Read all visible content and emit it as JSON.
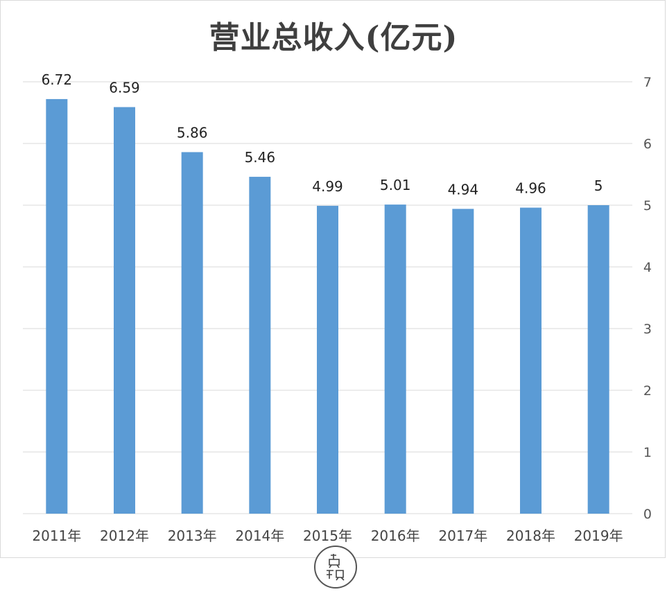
{
  "chart_data": {
    "type": "bar",
    "title": "营业总收入(亿元)",
    "categories": [
      "2011年",
      "2012年",
      "2013年",
      "2014年",
      "2015年",
      "2016年",
      "2017年",
      "2018年",
      "2019年"
    ],
    "values": [
      6.72,
      6.59,
      5.86,
      5.46,
      4.99,
      5.01,
      4.94,
      4.96,
      5
    ],
    "value_labels": [
      "6.72",
      "6.59",
      "5.86",
      "5.46",
      "4.99",
      "5.01",
      "4.94",
      "4.96",
      "5"
    ],
    "y_axis_position": "right",
    "ylim": [
      0,
      7
    ],
    "yticks": [
      0,
      1,
      2,
      3,
      4,
      5,
      6,
      7
    ],
    "grid": true,
    "legend": "none",
    "bar_color": "#5b9bd5",
    "grid_color": "#d9d9d9"
  },
  "watermark": {
    "text": "贞观",
    "type": "seal"
  }
}
